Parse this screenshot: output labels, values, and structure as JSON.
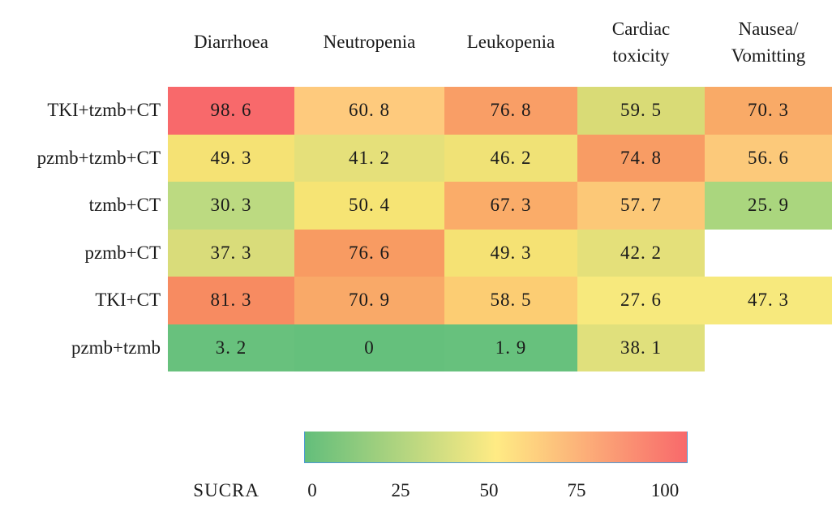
{
  "chart_data": {
    "type": "heatmap",
    "title": "",
    "legend": {
      "label": "SUCRA",
      "ticks": [
        "0",
        "25",
        "50",
        "75",
        "100"
      ],
      "range": [
        0,
        100
      ],
      "gradient_stops": [
        "#63BE7B",
        "#FFEB84",
        "#F8696B"
      ],
      "border_color": "#4E9AD4",
      "position": "bottom"
    },
    "columns": [
      {
        "label": "Diarrhoea",
        "lines": [
          "Diarrhoea"
        ]
      },
      {
        "label": "Neutropenia",
        "lines": [
          "Neutropenia"
        ]
      },
      {
        "label": "Leukopenia",
        "lines": [
          "Leukopenia"
        ]
      },
      {
        "label": "Cardiac toxicity",
        "lines": [
          "Cardiac",
          "toxicity"
        ]
      },
      {
        "label": "Nausea/Vomitting",
        "lines": [
          "Nausea/",
          "Vomitting"
        ]
      }
    ],
    "rows": [
      {
        "label": "TKI+tzmb+CT",
        "cells": [
          {
            "value": 98.6,
            "display": "98. 6",
            "color": "#F8696B"
          },
          {
            "value": 60.8,
            "display": "60. 8",
            "color": "#FECA7D"
          },
          {
            "value": 76.8,
            "display": "76. 8",
            "color": "#F99E66"
          },
          {
            "value": 59.5,
            "display": "59. 5",
            "color": "#D9DB76"
          },
          {
            "value": 70.3,
            "display": "70. 3",
            "color": "#F9AA67"
          }
        ]
      },
      {
        "label": "pzmb+tzmb+CT",
        "cells": [
          {
            "value": 49.3,
            "display": "49. 3",
            "color": "#F5E274"
          },
          {
            "value": 41.2,
            "display": "41. 2",
            "color": "#E5E07A"
          },
          {
            "value": 46.2,
            "display": "46. 2",
            "color": "#F0E276"
          },
          {
            "value": 74.8,
            "display": "74. 8",
            "color": "#F89C64"
          },
          {
            "value": 56.6,
            "display": "56. 6",
            "color": "#FCC97A"
          }
        ]
      },
      {
        "label": "tzmb+CT",
        "cells": [
          {
            "value": 30.3,
            "display": "30. 3",
            "color": "#BCDA81"
          },
          {
            "value": 50.4,
            "display": "50. 4",
            "color": "#F6E474"
          },
          {
            "value": 67.3,
            "display": "67. 3",
            "color": "#FAAC69"
          },
          {
            "value": 57.7,
            "display": "57. 7",
            "color": "#FCC877"
          },
          {
            "value": 25.9,
            "display": "25. 9",
            "color": "#AAD67E"
          }
        ]
      },
      {
        "label": "pzmb+CT",
        "cells": [
          {
            "value": 37.3,
            "display": "37. 3",
            "color": "#D9DC7A"
          },
          {
            "value": 76.6,
            "display": "76. 6",
            "color": "#F89B62"
          },
          {
            "value": 49.3,
            "display": "49. 3",
            "color": "#F5E274"
          },
          {
            "value": 42.2,
            "display": "42. 2",
            "color": "#E4E07A"
          },
          null
        ]
      },
      {
        "label": "TKI+CT",
        "cells": [
          {
            "value": 81.3,
            "display": "81. 3",
            "color": "#F78B61"
          },
          {
            "value": 70.9,
            "display": "70. 9",
            "color": "#F9A968"
          },
          {
            "value": 58.5,
            "display": "58. 5",
            "color": "#FCCD73"
          },
          {
            "value": 27.6,
            "display": "27. 6",
            "color": "#F7E97D"
          },
          {
            "value": 47.3,
            "display": "47. 3",
            "color": "#F7E97D"
          }
        ]
      },
      {
        "label": "pzmb+tzmb",
        "cells": [
          {
            "value": 3.2,
            "display": "3. 2",
            "color": "#68C17D"
          },
          {
            "value": 0,
            "display": "0",
            "color": "#65C07C"
          },
          {
            "value": 1.9,
            "display": "1. 9",
            "color": "#67C17D"
          },
          {
            "value": 38.1,
            "display": "38. 1",
            "color": "#E0E07C"
          },
          null
        ]
      }
    ]
  }
}
